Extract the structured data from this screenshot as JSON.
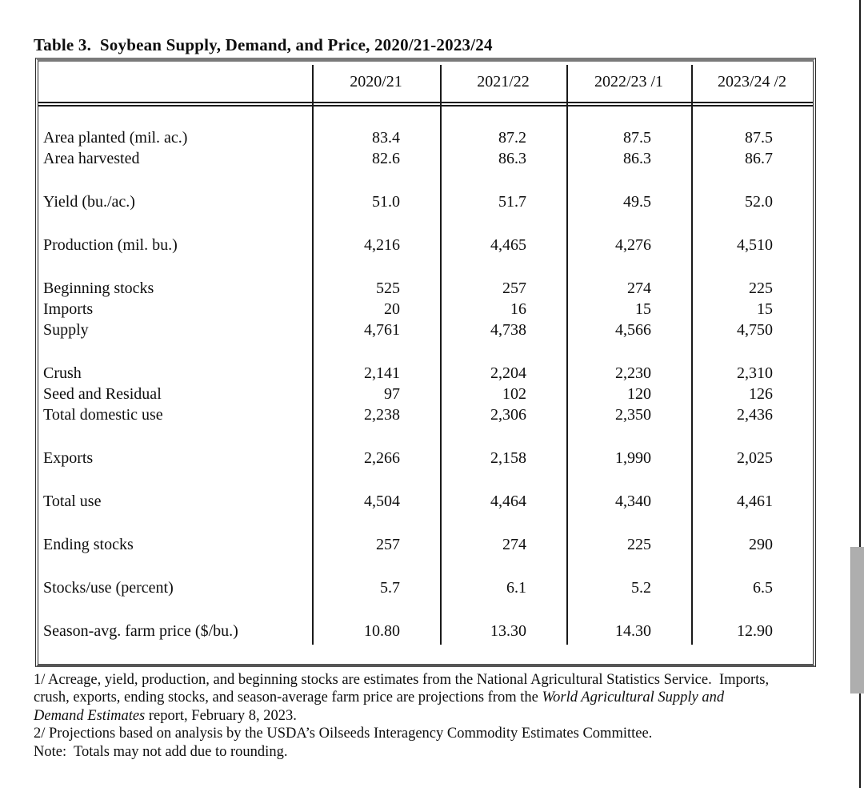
{
  "title": "Table 3.  Soybean Supply, Demand, and Price, 2020/21-2023/24",
  "table": {
    "columns": [
      "2020/21",
      "2021/22",
      "2022/23 /1",
      "2023/24 /2"
    ],
    "rows": [
      {
        "type": "data",
        "label": "Area planted (mil. ac.)",
        "values": [
          "83.4",
          "87.2",
          "87.5",
          "87.5"
        ]
      },
      {
        "type": "data",
        "label": "Area harvested",
        "values": [
          "82.6",
          "86.3",
          "86.3",
          "86.7"
        ]
      },
      {
        "type": "spacer"
      },
      {
        "type": "data",
        "label": "Yield (bu./ac.)",
        "values": [
          "51.0",
          "51.7",
          "49.5",
          "52.0"
        ]
      },
      {
        "type": "spacer"
      },
      {
        "type": "data",
        "label": "Production (mil. bu.)",
        "values": [
          "4,216",
          "4,465",
          "4,276",
          "4,510"
        ]
      },
      {
        "type": "spacer"
      },
      {
        "type": "data",
        "label": "Beginning stocks",
        "values": [
          "525",
          "257",
          "274",
          "225"
        ]
      },
      {
        "type": "data",
        "label": "Imports",
        "values": [
          "20",
          "16",
          "15",
          "15"
        ]
      },
      {
        "type": "data",
        "label": "Supply",
        "values": [
          "4,761",
          "4,738",
          "4,566",
          "4,750"
        ]
      },
      {
        "type": "spacer"
      },
      {
        "type": "data",
        "label": "Crush",
        "values": [
          "2,141",
          "2,204",
          "2,230",
          "2,310"
        ]
      },
      {
        "type": "data",
        "label": "Seed and Residual",
        "values": [
          "97",
          "102",
          "120",
          "126"
        ]
      },
      {
        "type": "data",
        "label": "Total domestic use",
        "values": [
          "2,238",
          "2,306",
          "2,350",
          "2,436"
        ]
      },
      {
        "type": "spacer"
      },
      {
        "type": "data",
        "label": "Exports",
        "values": [
          "2,266",
          "2,158",
          "1,990",
          "2,025"
        ]
      },
      {
        "type": "spacer"
      },
      {
        "type": "data",
        "label": "Total use",
        "values": [
          "4,504",
          "4,464",
          "4,340",
          "4,461"
        ]
      },
      {
        "type": "spacer"
      },
      {
        "type": "data",
        "label": "Ending stocks",
        "values": [
          "257",
          "274",
          "225",
          "290"
        ]
      },
      {
        "type": "spacer"
      },
      {
        "type": "data",
        "label": "Stocks/use (percent)",
        "values": [
          "5.7",
          "6.1",
          "5.2",
          "6.5"
        ]
      },
      {
        "type": "spacer"
      },
      {
        "type": "data",
        "label": "Season-avg. farm price ($/bu.)",
        "values": [
          "10.80",
          "13.30",
          "14.30",
          "12.90"
        ]
      }
    ]
  },
  "footnotes": {
    "lines": [
      [
        {
          "text": "1/ Acreage, yield, production, and beginning stocks are estimates from the National Agricultural Statistics Service.  Imports,",
          "italic": false
        }
      ],
      [
        {
          "text": "crush, exports, ending stocks, and season-average farm price are projections from the ",
          "italic": false
        },
        {
          "text": "World Agricultural Supply and",
          "italic": true
        }
      ],
      [
        {
          "text": "Demand Estimates",
          "italic": true
        },
        {
          "text": " report, February 8, 2023.",
          "italic": false
        }
      ],
      [
        {
          "text": "2/ Projections based on analysis by the USDA’s Oilseeds Interagency Commodity Estimates Committee.",
          "italic": false
        }
      ],
      [
        {
          "text": "Note:  Totals may not add due to rounding.",
          "italic": false
        }
      ]
    ]
  },
  "colors": {
    "table_top_border": "#7a7a7a",
    "table_bottom_border": "#565656",
    "grid_line": "#1a1a1a",
    "scrollbar_thumb": "#aeaeae",
    "right_edge_line": "#1c1c1c"
  }
}
